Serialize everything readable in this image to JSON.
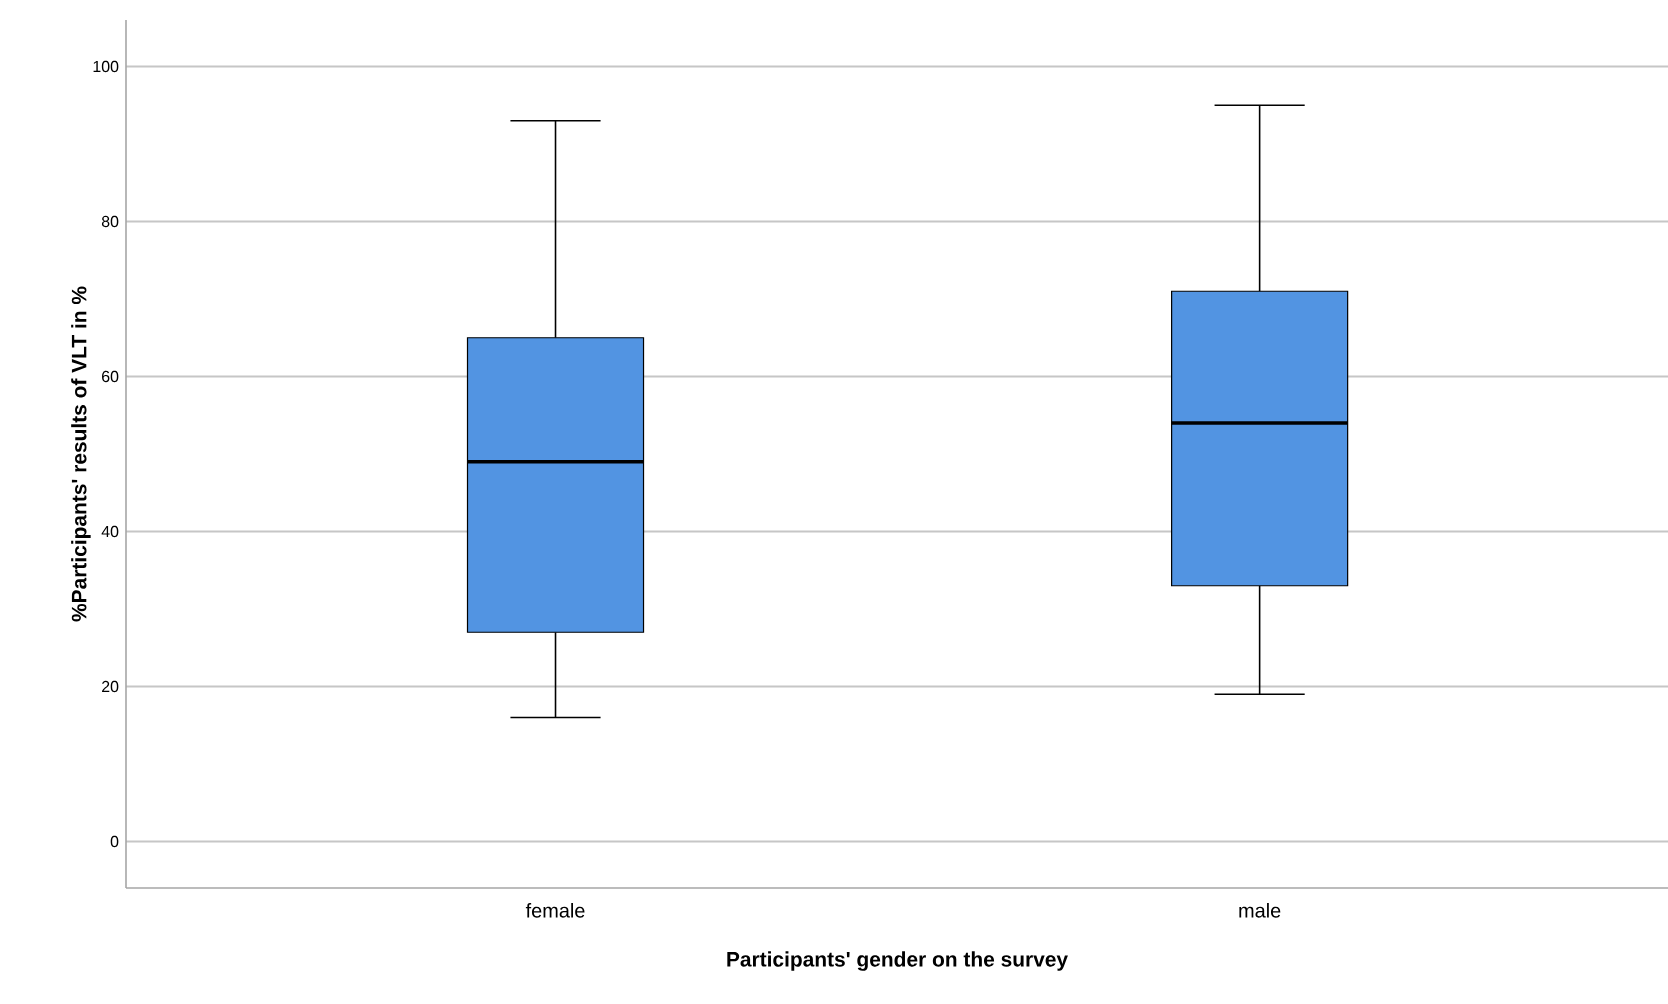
{
  "chart_data": {
    "type": "box",
    "xlabel": "Participants' gender on the survey",
    "ylabel": "%Participants' results of VLT in %",
    "categories": [
      "female",
      "male"
    ],
    "boxes": [
      {
        "low": 16,
        "q1": 27,
        "median": 49,
        "q3": 65,
        "high": 93
      },
      {
        "low": 19,
        "q1": 33,
        "median": 54,
        "q3": 71,
        "high": 95
      }
    ],
    "color": "#5294e2",
    "ylim": [
      -6,
      106
    ],
    "yticks": [
      0,
      20,
      40,
      60,
      80,
      100
    ],
    "grid": "y"
  }
}
